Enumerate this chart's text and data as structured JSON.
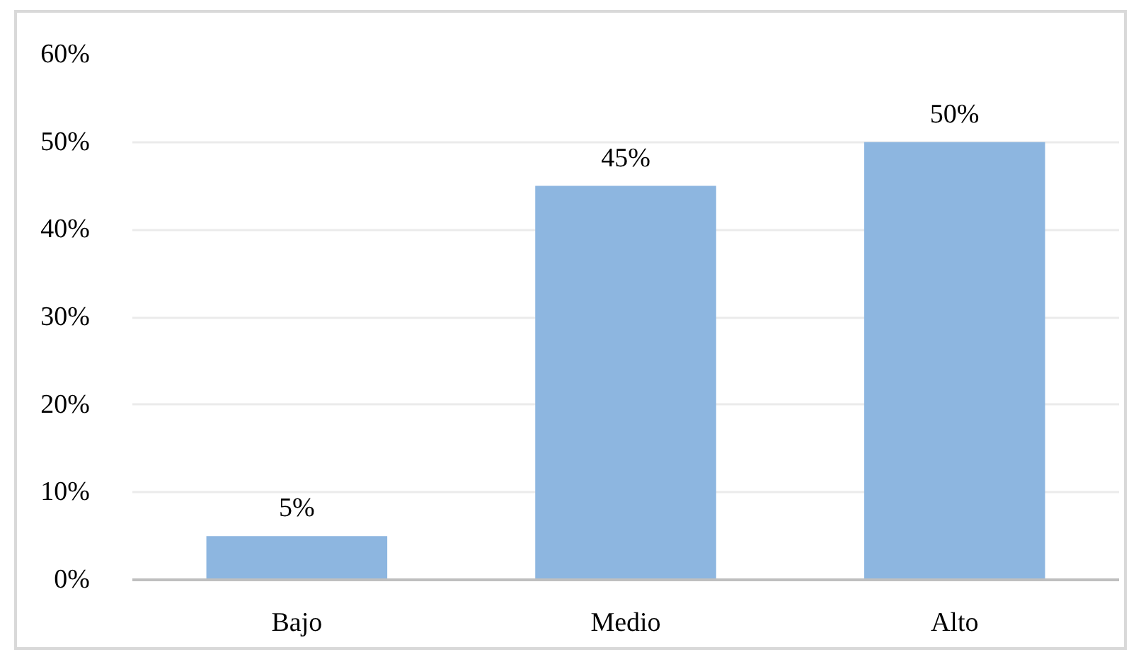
{
  "chart_data": {
    "type": "bar",
    "categories": [
      "Bajo",
      "Medio",
      "Alto"
    ],
    "values": [
      5,
      45,
      50
    ],
    "color": "#8db6e0",
    "value_labels": [
      "5%",
      "45%",
      "50%"
    ],
    "ylim": [
      0,
      60
    ],
    "yticks": [
      {
        "value": 0,
        "label": "0%"
      },
      {
        "value": 10,
        "label": "10%"
      },
      {
        "value": 20,
        "label": "20%"
      },
      {
        "value": 30,
        "label": "30%"
      },
      {
        "value": 40,
        "label": "40%"
      },
      {
        "value": 50,
        "label": "50%"
      },
      {
        "value": 60,
        "label": "60%"
      }
    ],
    "grid": "y"
  }
}
